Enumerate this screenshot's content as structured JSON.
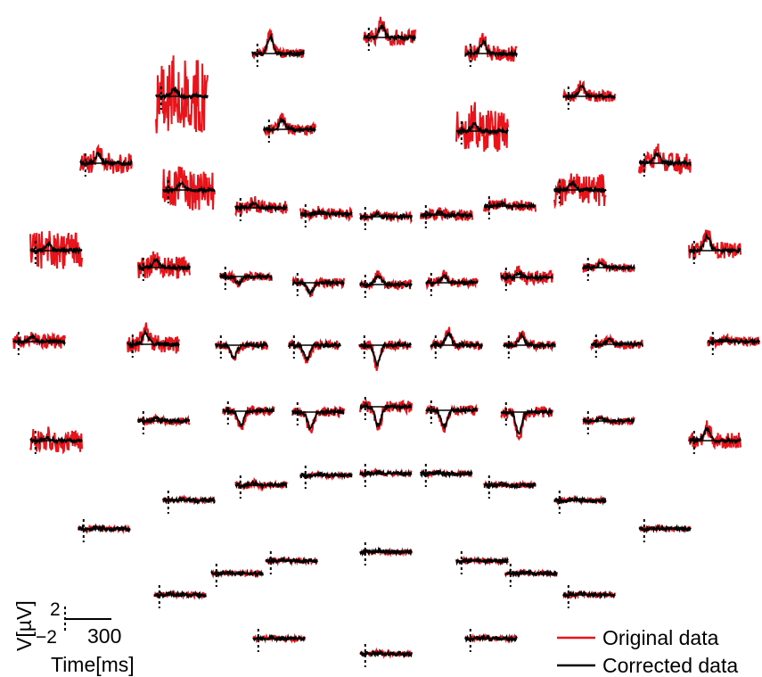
{
  "chart_data": {
    "type": "line",
    "series": [
      {
        "name": "Original data",
        "color": "#e8141b"
      },
      {
        "name": "Corrected data",
        "color": "#000000"
      }
    ],
    "scale_bar": {
      "amplitude_label": "V[µV]",
      "amplitude_ticks": [
        "2",
        "−2"
      ],
      "time_value": "300",
      "time_label": "Time[ms]"
    },
    "legend_position": "bottom-right",
    "channels": [
      {
        "id": 1,
        "noise": 0.35,
        "peak": 0.5
      },
      {
        "id": 2,
        "noise": 0.2,
        "peak": 0.7
      },
      {
        "id": 3,
        "noise": 0.35,
        "peak": 0.5
      },
      {
        "id": 4,
        "noise": 1.6,
        "peak": 0.3
      },
      {
        "id": 5,
        "noise": 0.25,
        "peak": 0.4
      },
      {
        "id": 6,
        "noise": 0.25,
        "peak": 0.4
      },
      {
        "id": 7,
        "noise": 0.9,
        "peak": 0.3
      },
      {
        "id": 8,
        "noise": 0.45,
        "peak": 0.4
      },
      {
        "id": 9,
        "noise": 0.45,
        "peak": 0.4
      },
      {
        "id": 10,
        "noise": 0.9,
        "peak": 0.3
      },
      {
        "id": 11,
        "noise": 0.7,
        "peak": 0.3
      },
      {
        "id": 12,
        "noise": 0.3,
        "peak": 0.2
      },
      {
        "id": 13,
        "noise": 0.25,
        "peak": 0.1
      },
      {
        "id": 14,
        "noise": 0.2,
        "peak": 0.1
      },
      {
        "id": 15,
        "noise": 0.25,
        "peak": 0.1
      },
      {
        "id": 16,
        "noise": 0.25,
        "peak": 0.1
      },
      {
        "id": 17,
        "noise": 0.8,
        "peak": 0.3
      },
      {
        "id": 18,
        "noise": 0.35,
        "peak": 0.6
      },
      {
        "id": 19,
        "noise": 0.5,
        "peak": 0.3
      },
      {
        "id": 20,
        "noise": 0.2,
        "peak": 0.2
      },
      {
        "id": 21,
        "noise": 0.2,
        "peak": -0.3
      },
      {
        "id": 22,
        "noise": 0.2,
        "peak": -0.4
      },
      {
        "id": 23,
        "noise": 0.2,
        "peak": 0.4
      },
      {
        "id": 24,
        "noise": 0.2,
        "peak": 0.3
      },
      {
        "id": 25,
        "noise": 0.3,
        "peak": 0.2
      },
      {
        "id": 26,
        "noise": 0.3,
        "peak": 0.2
      },
      {
        "id": 27,
        "noise": 0.4,
        "peak": 0.5
      },
      {
        "id": 28,
        "noise": 0.2,
        "peak": 0.1
      },
      {
        "id": 29,
        "noise": 0.2,
        "peak": -0.5
      },
      {
        "id": 30,
        "noise": 0.2,
        "peak": -0.6
      },
      {
        "id": 31,
        "noise": 0.2,
        "peak": -0.8
      },
      {
        "id": 32,
        "noise": 0.2,
        "peak": 0.5
      },
      {
        "id": 33,
        "noise": 0.2,
        "peak": 0.4
      },
      {
        "id": 34,
        "noise": 0.2,
        "peak": 0.2
      },
      {
        "id": 35,
        "noise": 0.5,
        "peak": 0.1
      },
      {
        "id": 36,
        "noise": 0.35,
        "peak": 0.5
      },
      {
        "id": 37,
        "noise": 0.15,
        "peak": 0.1
      },
      {
        "id": 38,
        "noise": 0.2,
        "peak": -0.6
      },
      {
        "id": 39,
        "noise": 0.2,
        "peak": -0.7
      },
      {
        "id": 40,
        "noise": 0.25,
        "peak": -0.8
      },
      {
        "id": 41,
        "noise": 0.2,
        "peak": -0.7
      },
      {
        "id": 42,
        "noise": 0.25,
        "peak": -0.9
      },
      {
        "id": 43,
        "noise": 0.15,
        "peak": 0.1
      },
      {
        "id": 44,
        "noise": 0.15,
        "peak": 0.1
      },
      {
        "id": 45,
        "noise": 0.1,
        "peak": 0.05
      },
      {
        "id": 46,
        "noise": 0.1,
        "peak": 0.05
      },
      {
        "id": 47,
        "noise": 0.1,
        "peak": 0.05
      },
      {
        "id": 48,
        "noise": 0.1,
        "peak": 0.05
      },
      {
        "id": 49,
        "noise": 0.1,
        "peak": 0.05
      },
      {
        "id": 50,
        "noise": 0.1,
        "peak": 0.05
      },
      {
        "id": 51,
        "noise": 0.1,
        "peak": 0.05
      },
      {
        "id": 52,
        "noise": 0.1,
        "peak": 0.05
      },
      {
        "id": 53,
        "noise": 0.1,
        "peak": 0.05
      },
      {
        "id": 54,
        "noise": 0.1,
        "peak": 0.05
      },
      {
        "id": 55,
        "noise": 0.1,
        "peak": 0.05
      },
      {
        "id": 56,
        "noise": 0.1,
        "peak": 0.05
      },
      {
        "id": 57,
        "noise": 0.1,
        "peak": 0.05
      },
      {
        "id": 58,
        "noise": 0.1,
        "peak": 0.05
      },
      {
        "id": 59,
        "noise": 0.1,
        "peak": 0.05
      },
      {
        "id": 60,
        "noise": 0.1,
        "peak": 0.05
      },
      {
        "id": 61,
        "noise": 0.1,
        "peak": 0.05
      },
      {
        "id": 62,
        "noise": 0.1,
        "peak": 0.05
      },
      {
        "id": 63,
        "noise": 0.1,
        "peak": 0.05
      },
      {
        "id": 64,
        "noise": 0.1,
        "peak": 0.05
      }
    ]
  }
}
